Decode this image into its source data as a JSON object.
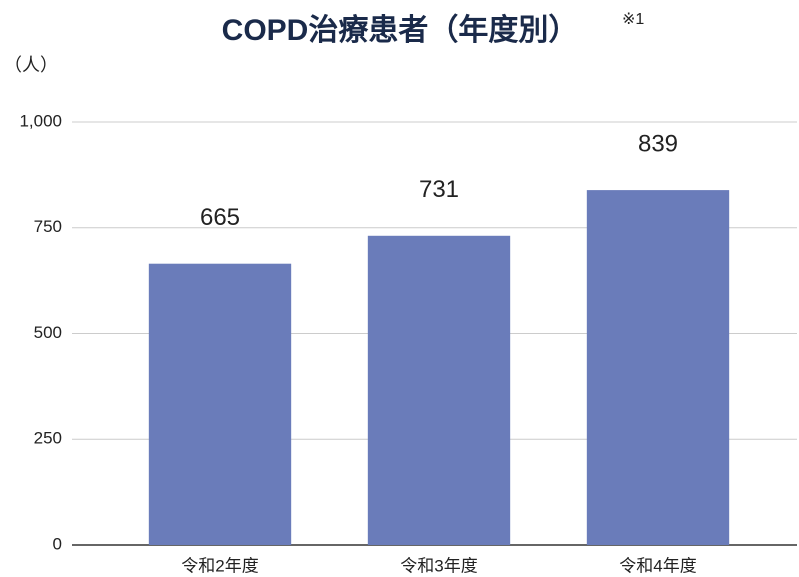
{
  "chart_data": {
    "type": "bar",
    "title": "COPD治療患者（年度別）",
    "title_note": "※1",
    "y_label": "（人）",
    "categories": [
      "令和2年度",
      "令和3年度",
      "令和4年度"
    ],
    "values": [
      665,
      731,
      839
    ],
    "color": "#6a7cba",
    "ylim": [
      0,
      1000
    ],
    "yticks": [
      0,
      250,
      500,
      750,
      {
        "value": 1000,
        "label": "1,000"
      }
    ],
    "grid": true
  }
}
